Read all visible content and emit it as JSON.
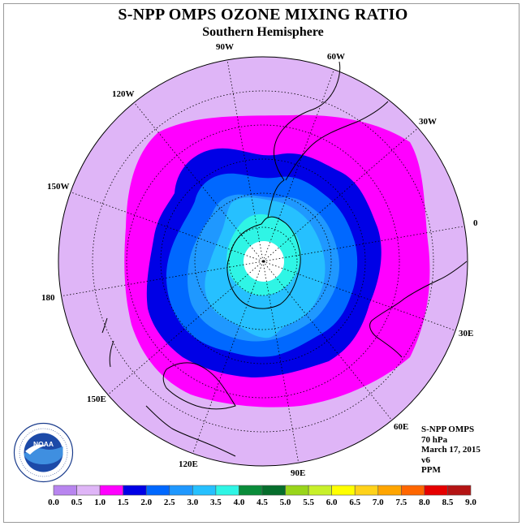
{
  "title": "S-NPP OMPS OZONE MIXING RATIO",
  "subtitle": "Southern Hemisphere",
  "longitude_labels": [
    "90W",
    "60W",
    "120W",
    "30W",
    "150W",
    "0",
    "180",
    "30E",
    "150E",
    "60E",
    "120E",
    "90E"
  ],
  "info": {
    "instrument": "S-NPP OMPS",
    "level": "70 hPa",
    "date": "March 17, 2015",
    "version": "v6",
    "units": "PPM"
  },
  "logo": {
    "text": "NOAA",
    "ring_text": "NATIONAL OCEANIC AND ATMOSPHERIC ADMINISTRATION · U.S. DEPARTMENT OF COMMERCE"
  },
  "colorbar": {
    "labels": [
      "0.0",
      "0.5",
      "1.0",
      "1.5",
      "2.0",
      "2.5",
      "3.0",
      "3.5",
      "4.0",
      "4.5",
      "5.0",
      "5.5",
      "6.0",
      "6.5",
      "7.0",
      "7.5",
      "8.0",
      "8.5",
      "9.0"
    ],
    "colors": [
      "#b885ef",
      "#dfb5f7",
      "#ff00ff",
      "#0000e6",
      "#0068ff",
      "#1f98ff",
      "#26c0ff",
      "#2ff5e5",
      "#0a8c3a",
      "#066e2c",
      "#99d51a",
      "#c8f02a",
      "#ffff00",
      "#ffd21a",
      "#ffa500",
      "#ff6600",
      "#e60000",
      "#b41414"
    ]
  },
  "map_colors": {
    "ocean_outside": "#dfb5f7",
    "level_1_0": "#ff00ff",
    "level_1_5": "#0000e6",
    "level_2_0": "#0068ff",
    "level_2_5": "#1f98ff",
    "level_3_0": "#26c0ff",
    "level_3_5": "#2ff5e5",
    "missing": "#ffffff"
  }
}
